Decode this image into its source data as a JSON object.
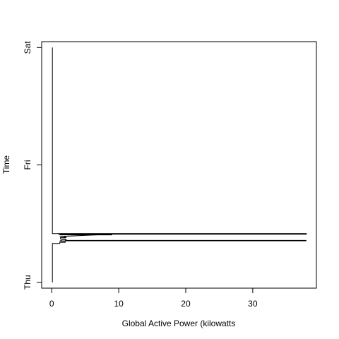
{
  "chart_data": {
    "type": "line",
    "title": "",
    "xlabel": "Global Active Power (kilowatts",
    "ylabel": "Time",
    "xlim": [
      -1.5,
      39.5
    ],
    "ylim": [
      -0.05,
      2.05
    ],
    "x_ticks": [
      0,
      10,
      20,
      30
    ],
    "x_tick_labels": [
      "0",
      "10",
      "20",
      "30"
    ],
    "y_ticks": [
      0,
      1,
      2
    ],
    "y_tick_labels": [
      "Thu",
      "Fri",
      "Sat"
    ],
    "grid": false,
    "legend": "none",
    "colors": {
      "line": "#000000",
      "axis": "#000000",
      "background": "#ffffff"
    },
    "series": [
      {
        "values": [
          [
            0.1,
            0.0
          ],
          [
            0.1,
            0.33
          ],
          [
            1.2,
            0.33
          ],
          [
            1.2,
            0.34
          ],
          [
            2.0,
            0.34
          ],
          [
            2.0,
            0.35
          ],
          [
            1.2,
            0.35
          ],
          [
            1.5,
            0.36
          ],
          [
            2.2,
            0.36
          ],
          [
            2.0,
            0.37
          ],
          [
            1.3,
            0.37
          ],
          [
            1.3,
            0.38
          ],
          [
            1.8,
            0.38
          ],
          [
            2.2,
            0.38
          ],
          [
            1.8,
            0.39
          ],
          [
            1.2,
            0.39
          ],
          [
            9.0,
            0.41
          ],
          [
            1.0,
            0.41
          ],
          [
            38.0,
            0.41
          ],
          [
            38.0,
            0.415
          ],
          [
            0.1,
            0.415
          ],
          [
            0.1,
            2.0
          ]
        ],
        "bands": [
          {
            "x_from": 2.0,
            "x_to": 38.0,
            "y": 0.355
          },
          {
            "x_from": 1.0,
            "x_to": 38.0,
            "y": 0.412
          },
          {
            "x_from": 1.2,
            "x_to": 9.0,
            "y": 0.405
          }
        ]
      }
    ]
  }
}
